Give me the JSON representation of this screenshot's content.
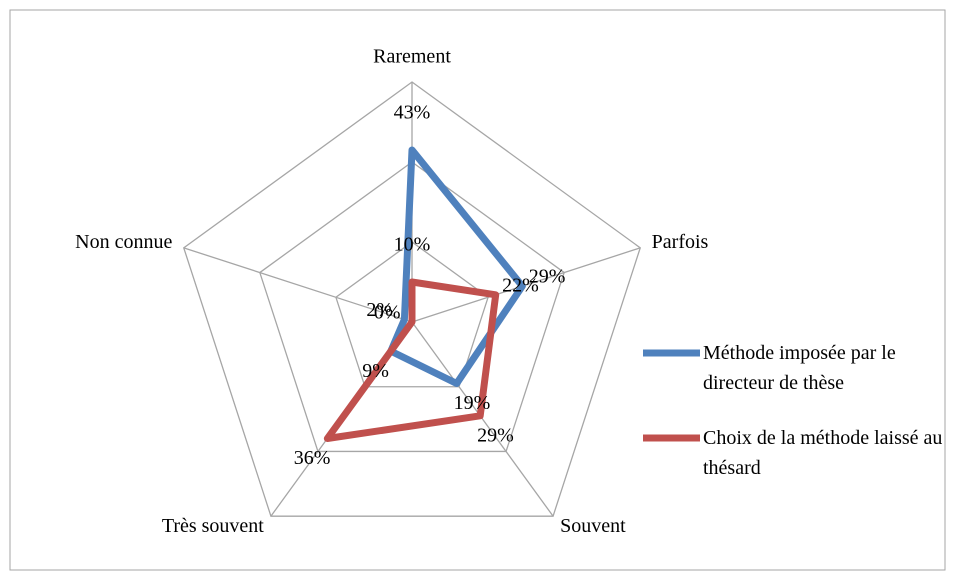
{
  "chart_data": {
    "type": "radar",
    "categories": [
      "Rarement",
      "Parfois",
      "Souvent",
      "Très souvent",
      "Non connue"
    ],
    "series": [
      {
        "name": "Méthode imposée par le directeur de thèse",
        "color": "#4f81bd",
        "values": [
          43,
          29,
          19,
          9,
          2
        ],
        "value_labels": [
          "43%",
          "29%",
          "19%",
          "9%",
          "2%"
        ]
      },
      {
        "name": "Choix de la méthode laissé au thésard",
        "color": "#c0504d",
        "values": [
          10,
          22,
          29,
          36,
          0
        ],
        "value_labels": [
          "10%",
          "22%",
          "29%",
          "36%",
          "0%"
        ]
      }
    ],
    "rlim": [
      0,
      60
    ],
    "rticks": [
      0,
      20,
      40,
      60
    ],
    "grid": true,
    "legend": "right"
  }
}
